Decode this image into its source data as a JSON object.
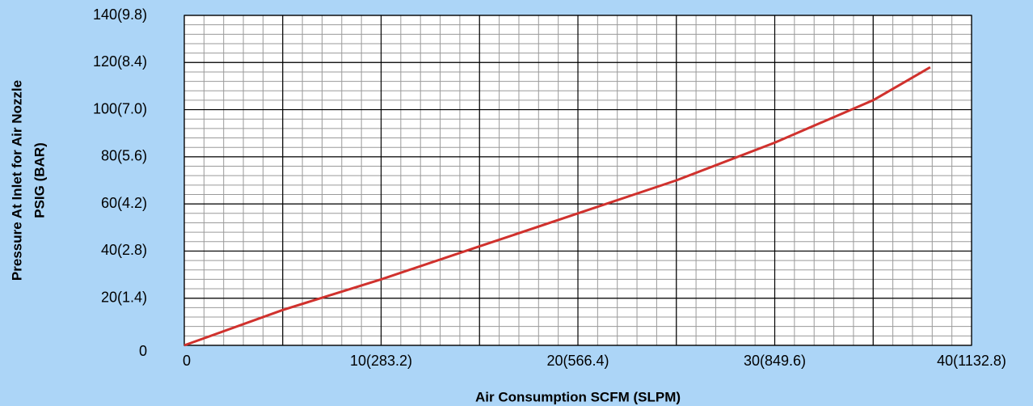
{
  "chart_data": {
    "type": "line",
    "xlabel": "Air Consumption SCFM (SLPM)",
    "ylabel": [
      "Pressure At Inlet for Air Nozzle",
      "PSIG (BAR)"
    ],
    "x": [
      0,
      5,
      10,
      15,
      20,
      25,
      30,
      35,
      37.9
    ],
    "series": [
      {
        "name": "Pressure",
        "color": "#d0312d",
        "values": [
          0,
          15,
          28,
          42,
          56,
          70,
          86,
          104,
          118
        ]
      }
    ],
    "xlim": [
      0,
      40
    ],
    "xticks": [
      0,
      {
        "value": 10,
        "label": "10(283.2)"
      },
      {
        "value": 20,
        "label": "20(566.4)"
      },
      {
        "value": 30,
        "label": "30(849.6)"
      },
      {
        "value": 40,
        "label": "40(1132.8)"
      }
    ],
    "ylim": [
      0,
      140
    ],
    "yticks": [
      0,
      {
        "value": 20,
        "label": "20(1.4)"
      },
      {
        "value": 40,
        "label": "40(2.8)"
      },
      {
        "value": 60,
        "label": "60(4.2)"
      },
      {
        "value": 80,
        "label": "80(5.6)"
      },
      {
        "value": 100,
        "label": "100(7.0)"
      },
      {
        "value": 120,
        "label": "120(8.4)"
      },
      {
        "value": 140,
        "label": "140(9.8)"
      }
    ],
    "grid": true,
    "x_major_step": 5,
    "x_minor_step": 1,
    "y_minor_step": 4
  }
}
